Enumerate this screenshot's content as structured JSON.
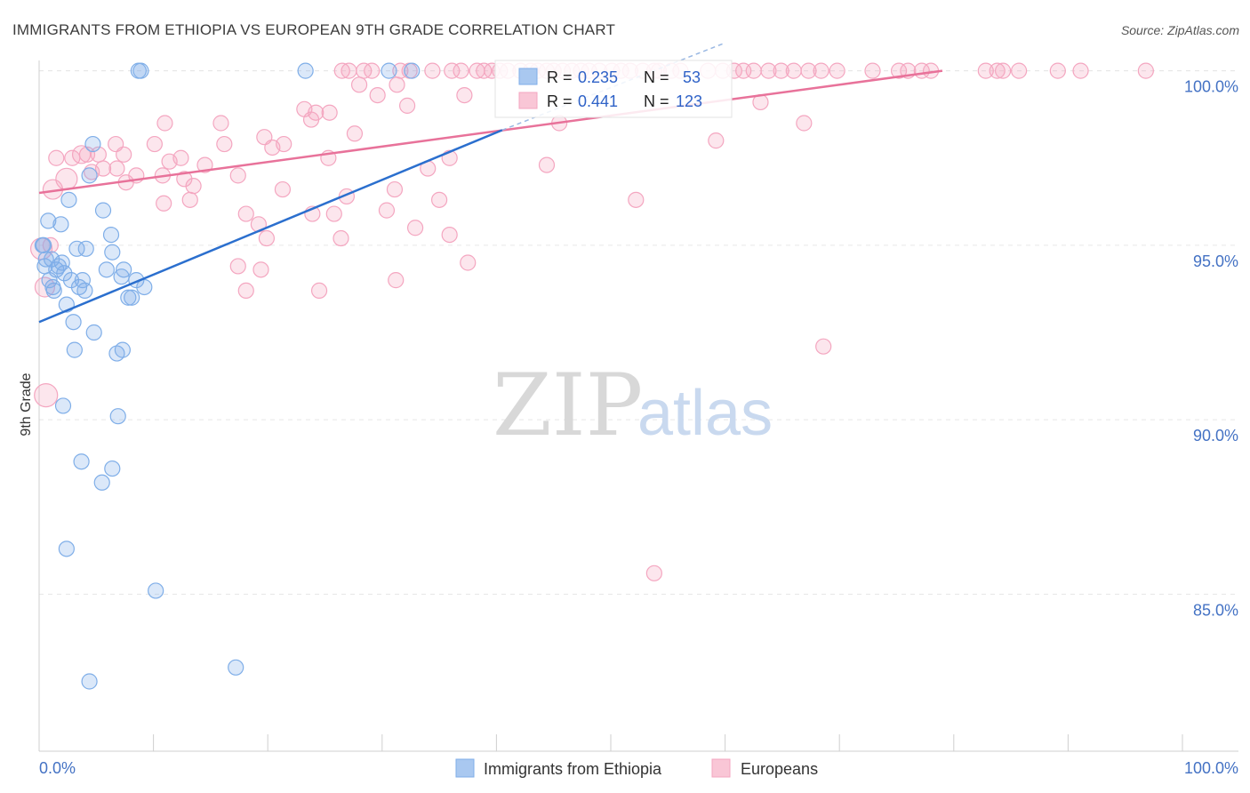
{
  "title": "IMMIGRANTS FROM ETHIOPIA VS EUROPEAN 9TH GRADE CORRELATION CHART",
  "source": "Source: ZipAtlas.com",
  "watermark": {
    "zip": "ZIP",
    "atlas": "atlas"
  },
  "colors": {
    "blue": "#7faee8",
    "blue_line": "#2b6fce",
    "pink": "#f4a6c0",
    "pink_line": "#e8729a",
    "axis_text": "#4472c4"
  },
  "stats": [
    {
      "r_label": "R = ",
      "r_value": "0.235",
      "n_label": "N = ",
      "n_value": "53",
      "color": "#7faee8"
    },
    {
      "r_label": "R = ",
      "r_value": "0.441",
      "n_label": "N = ",
      "n_value": "123",
      "color": "#f4a6c0"
    }
  ],
  "legend": [
    {
      "label": "Immigrants from Ethiopia",
      "color": "#7faee8"
    },
    {
      "label": "Europeans",
      "color": "#f4a6c0"
    }
  ],
  "chart_data": {
    "type": "scatter",
    "title": "IMMIGRANTS FROM ETHIOPIA VS EUROPEAN 9TH GRADE CORRELATION CHART",
    "xlabel": "",
    "ylabel": "9th Grade",
    "xlim": [
      0,
      100
    ],
    "ylim": [
      80.5,
      100.5
    ],
    "x_tick_labels": [
      "0.0%",
      "100.0%"
    ],
    "y_ticks": [
      85,
      90,
      95,
      100
    ],
    "y_tick_labels": [
      "85.0%",
      "90.0%",
      "95.0%",
      "100.0%"
    ],
    "series": [
      {
        "name": "Immigrants from Ethiopia",
        "color": "#7faee8",
        "line_color": "#2b6fce",
        "trendline": {
          "x": [
            0,
            40.5
          ],
          "y": [
            92.8,
            98.3
          ]
        },
        "trendline_dashed": {
          "x": [
            40.5,
            60
          ],
          "y": [
            98.3,
            100.8
          ]
        },
        "points": [
          [
            8.7,
            100
          ],
          [
            8.9,
            100
          ],
          [
            23.3,
            100
          ],
          [
            30.6,
            100
          ],
          [
            32.6,
            100
          ],
          [
            4.7,
            97.9
          ],
          [
            4.4,
            97.0
          ],
          [
            2.6,
            96.3
          ],
          [
            5.6,
            96.0
          ],
          [
            0.8,
            95.7
          ],
          [
            1.9,
            95.6
          ],
          [
            0.4,
            95.0
          ],
          [
            3.3,
            94.9
          ],
          [
            4.1,
            94.9
          ],
          [
            6.3,
            95.3
          ],
          [
            6.4,
            94.8
          ],
          [
            1.1,
            94.6
          ],
          [
            2.0,
            94.5
          ],
          [
            0.5,
            94.4
          ],
          [
            1.5,
            94.3
          ],
          [
            5.9,
            94.3
          ],
          [
            7.4,
            94.3
          ],
          [
            2.8,
            94.0
          ],
          [
            3.8,
            94.0
          ],
          [
            7.2,
            94.1
          ],
          [
            8.5,
            94.0
          ],
          [
            1.2,
            93.8
          ],
          [
            3.5,
            93.8
          ],
          [
            4.0,
            93.7
          ],
          [
            8.1,
            93.5
          ],
          [
            9.2,
            93.8
          ],
          [
            1.3,
            93.7
          ],
          [
            7.8,
            93.5
          ],
          [
            2.4,
            93.3
          ],
          [
            3.0,
            92.8
          ],
          [
            4.8,
            92.5
          ],
          [
            3.1,
            92.0
          ],
          [
            6.8,
            91.9
          ],
          [
            7.3,
            92.0
          ],
          [
            2.1,
            90.4
          ],
          [
            6.9,
            90.1
          ],
          [
            3.7,
            88.8
          ],
          [
            6.4,
            88.6
          ],
          [
            5.5,
            88.2
          ],
          [
            2.4,
            86.3
          ],
          [
            10.2,
            85.1
          ],
          [
            17.2,
            82.9
          ],
          [
            4.4,
            82.5
          ],
          [
            0.3,
            95.0
          ],
          [
            0.6,
            94.6
          ],
          [
            1.7,
            94.4
          ],
          [
            2.2,
            94.2
          ],
          [
            0.9,
            94.0
          ]
        ]
      },
      {
        "name": "Europeans",
        "color": "#f4a6c0",
        "line_color": "#e8729a",
        "trendline": {
          "x": [
            0,
            79
          ],
          "y": [
            96.5,
            100
          ]
        },
        "points": [
          [
            26.5,
            100
          ],
          [
            27.1,
            100
          ],
          [
            28.4,
            100
          ],
          [
            29.1,
            100
          ],
          [
            31.6,
            100
          ],
          [
            32.4,
            100
          ],
          [
            34.4,
            100
          ],
          [
            36.1,
            100
          ],
          [
            36.9,
            100
          ],
          [
            38.3,
            100
          ],
          [
            38.9,
            100
          ],
          [
            39.6,
            100
          ],
          [
            40.3,
            100
          ],
          [
            41.0,
            100
          ],
          [
            42.1,
            100
          ],
          [
            43.0,
            100
          ],
          [
            43.6,
            100
          ],
          [
            44.4,
            100
          ],
          [
            45.0,
            100
          ],
          [
            45.8,
            100
          ],
          [
            46.6,
            100
          ],
          [
            47.4,
            100
          ],
          [
            48.1,
            100
          ],
          [
            49.0,
            100
          ],
          [
            50.1,
            100
          ],
          [
            50.9,
            100
          ],
          [
            51.7,
            100
          ],
          [
            52.8,
            100
          ],
          [
            53.8,
            100
          ],
          [
            54.2,
            100
          ],
          [
            55.3,
            100
          ],
          [
            56.1,
            100
          ],
          [
            58.5,
            100
          ],
          [
            59.8,
            100
          ],
          [
            60.8,
            100
          ],
          [
            61.6,
            100
          ],
          [
            62.5,
            100
          ],
          [
            63.8,
            100
          ],
          [
            64.9,
            100
          ],
          [
            66.0,
            100
          ],
          [
            67.3,
            100
          ],
          [
            68.4,
            100
          ],
          [
            69.8,
            100
          ],
          [
            72.9,
            100
          ],
          [
            75.2,
            100
          ],
          [
            76.0,
            100
          ],
          [
            77.2,
            100
          ],
          [
            78.0,
            100
          ],
          [
            82.8,
            100
          ],
          [
            83.8,
            100
          ],
          [
            84.3,
            100
          ],
          [
            85.7,
            100
          ],
          [
            89.1,
            100
          ],
          [
            91.1,
            100
          ],
          [
            96.8,
            100
          ],
          [
            28.0,
            99.6
          ],
          [
            31.3,
            99.6
          ],
          [
            29.6,
            99.3
          ],
          [
            37.2,
            99.3
          ],
          [
            63.1,
            99.1
          ],
          [
            23.2,
            98.9
          ],
          [
            24.2,
            98.8
          ],
          [
            25.4,
            98.8
          ],
          [
            32.2,
            99.0
          ],
          [
            11.0,
            98.5
          ],
          [
            15.9,
            98.5
          ],
          [
            23.8,
            98.6
          ],
          [
            45.5,
            98.5
          ],
          [
            66.9,
            98.5
          ],
          [
            27.6,
            98.2
          ],
          [
            19.7,
            98.1
          ],
          [
            21.4,
            97.9
          ],
          [
            59.2,
            98.0
          ],
          [
            6.7,
            97.9
          ],
          [
            10.1,
            97.9
          ],
          [
            16.2,
            97.9
          ],
          [
            20.4,
            97.8
          ],
          [
            4.2,
            97.6
          ],
          [
            3.7,
            97.6
          ],
          [
            7.4,
            97.6
          ],
          [
            12.4,
            97.5
          ],
          [
            2.9,
            97.5
          ],
          [
            1.5,
            97.5
          ],
          [
            5.2,
            97.6
          ],
          [
            11.4,
            97.4
          ],
          [
            14.5,
            97.3
          ],
          [
            17.4,
            97.0
          ],
          [
            25.3,
            97.5
          ],
          [
            34.0,
            97.2
          ],
          [
            35.9,
            97.5
          ],
          [
            44.4,
            97.3
          ],
          [
            5.6,
            97.2
          ],
          [
            6.8,
            97.2
          ],
          [
            8.5,
            97.0
          ],
          [
            10.8,
            97.0
          ],
          [
            12.7,
            96.9
          ],
          [
            4.6,
            97.1
          ],
          [
            2.4,
            96.9
          ],
          [
            1.2,
            96.6
          ],
          [
            7.6,
            96.8
          ],
          [
            13.5,
            96.7
          ],
          [
            21.3,
            96.6
          ],
          [
            26.9,
            96.4
          ],
          [
            31.1,
            96.6
          ],
          [
            35.0,
            96.3
          ],
          [
            52.2,
            96.3
          ],
          [
            10.9,
            96.2
          ],
          [
            13.2,
            96.3
          ],
          [
            18.1,
            95.9
          ],
          [
            23.9,
            95.9
          ],
          [
            25.8,
            95.9
          ],
          [
            30.4,
            96.0
          ],
          [
            32.9,
            95.5
          ],
          [
            35.9,
            95.3
          ],
          [
            19.2,
            95.6
          ],
          [
            19.9,
            95.2
          ],
          [
            26.4,
            95.2
          ],
          [
            1.0,
            95.0
          ],
          [
            0.2,
            94.9
          ],
          [
            37.5,
            94.5
          ],
          [
            17.4,
            94.4
          ],
          [
            19.4,
            94.3
          ],
          [
            31.2,
            94.0
          ],
          [
            0.5,
            93.8
          ],
          [
            18.1,
            93.7
          ],
          [
            24.5,
            93.7
          ],
          [
            68.6,
            92.1
          ],
          [
            0.6,
            90.7
          ],
          [
            53.8,
            85.6
          ]
        ]
      }
    ]
  }
}
